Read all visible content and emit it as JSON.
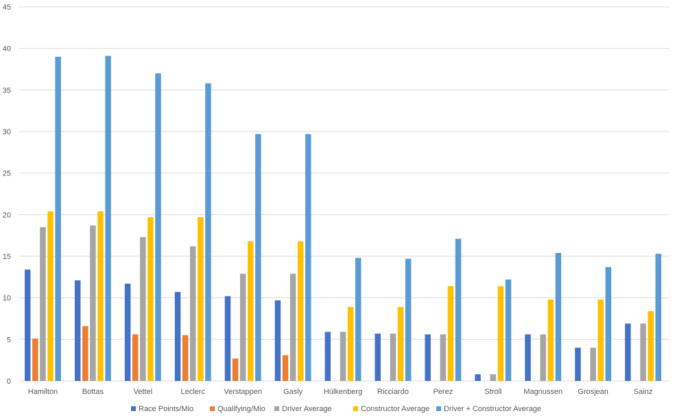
{
  "chart_data": {
    "type": "bar",
    "title": "",
    "xlabel": "",
    "ylabel": "",
    "ylim": [
      0,
      45
    ],
    "yticks": [
      0,
      5,
      10,
      15,
      20,
      25,
      30,
      35,
      40,
      45
    ],
    "grid": true,
    "legend_position": "bottom",
    "categories": [
      "Hamilton",
      "Bottas",
      "Vettel",
      "Leclerc",
      "Verstappen",
      "Gasly",
      "Hülkenberg",
      "Ricciardo",
      "Perez",
      "Stroll",
      "Magnussen",
      "Grosjean",
      "Sainz"
    ],
    "series": [
      {
        "name": "Race Points/Mio",
        "color": "#4472c4",
        "values": [
          13.4,
          12.1,
          11.7,
          10.7,
          10.2,
          9.7,
          5.9,
          5.7,
          5.6,
          0.8,
          5.6,
          4.0,
          6.9
        ]
      },
      {
        "name": "Qualifying/Mio",
        "color": "#ed7d31",
        "values": [
          5.1,
          6.6,
          5.6,
          5.5,
          2.7,
          3.1,
          0,
          0,
          0,
          0,
          0,
          0,
          0
        ]
      },
      {
        "name": "Driver Average",
        "color": "#a5a5a5",
        "values": [
          18.5,
          18.7,
          17.3,
          16.2,
          12.9,
          12.9,
          5.9,
          5.7,
          5.6,
          0.8,
          5.6,
          4.0,
          6.9
        ]
      },
      {
        "name": "Constructor Average",
        "color": "#ffc000",
        "values": [
          20.4,
          20.4,
          19.7,
          19.7,
          16.8,
          16.8,
          8.9,
          8.9,
          11.4,
          11.4,
          9.8,
          9.8,
          8.4
        ]
      },
      {
        "name": "Driver + Constructor Average",
        "color": "#5b9bd5",
        "values": [
          39.0,
          39.1,
          37.0,
          35.8,
          29.7,
          29.7,
          14.8,
          14.7,
          17.1,
          12.2,
          15.4,
          13.7,
          15.3
        ]
      }
    ]
  }
}
